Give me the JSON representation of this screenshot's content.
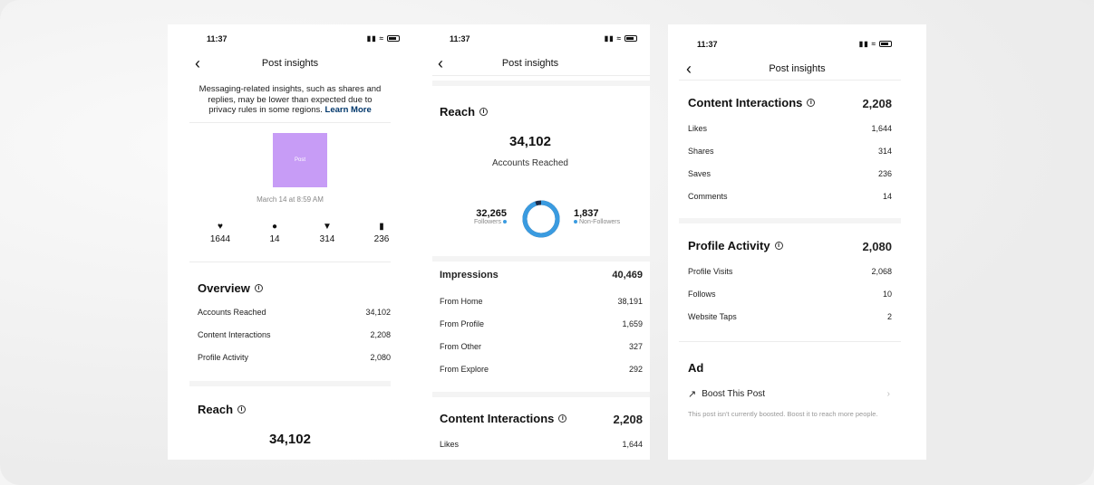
{
  "colors": {
    "accent": "#3a9be0",
    "post_thumb": "#c79cf6",
    "link": "#00376b"
  },
  "phone1": {
    "time": "11:37",
    "title": "Post insights",
    "notice": "Messaging-related insights, such as shares and replies, may be lower than expected due to privacy rules in some regions.",
    "learn_more": "Learn More",
    "thumb_label": "Post",
    "date": "March 14 at 8:59 AM",
    "stats": [
      {
        "icon": "heart-icon",
        "value": "1644"
      },
      {
        "icon": "comment-icon",
        "value": "14"
      },
      {
        "icon": "share-icon",
        "value": "314"
      },
      {
        "icon": "save-icon",
        "value": "236"
      }
    ],
    "overview_title": "Overview",
    "overview_rows": [
      {
        "label": "Accounts Reached",
        "value": "34,102"
      },
      {
        "label": "Content Interactions",
        "value": "2,208"
      },
      {
        "label": "Profile Activity",
        "value": "2,080"
      }
    ],
    "reach_title": "Reach",
    "reach_value": "34,102"
  },
  "phone2": {
    "time": "11:37",
    "title": "Post insights",
    "reach_title": "Reach",
    "reach_value": "34,102",
    "reach_sub": "Accounts Reached",
    "followers_value": "32,265",
    "followers_label": "Followers",
    "nonfollowers_value": "1,837",
    "nonfollowers_label": "Non-Followers",
    "followers_fraction": 0.946,
    "impressions_title": "Impressions",
    "impressions_value": "40,469",
    "impression_rows": [
      {
        "label": "From Home",
        "value": "38,191"
      },
      {
        "label": "From Profile",
        "value": "1,659"
      },
      {
        "label": "From Other",
        "value": "327"
      },
      {
        "label": "From Explore",
        "value": "292"
      }
    ],
    "ci_title": "Content Interactions",
    "ci_value": "2,208",
    "ci_row": {
      "label": "Likes",
      "value": "1,644"
    }
  },
  "phone3": {
    "time": "11:37",
    "title": "Post insights",
    "ci_title": "Content Interactions",
    "ci_value": "2,208",
    "ci_rows": [
      {
        "label": "Likes",
        "value": "1,644"
      },
      {
        "label": "Shares",
        "value": "314"
      },
      {
        "label": "Saves",
        "value": "236"
      },
      {
        "label": "Comments",
        "value": "14"
      }
    ],
    "pa_title": "Profile Activity",
    "pa_value": "2,080",
    "pa_rows": [
      {
        "label": "Profile Visits",
        "value": "2,068"
      },
      {
        "label": "Follows",
        "value": "10"
      },
      {
        "label": "Website Taps",
        "value": "2"
      }
    ],
    "ad_title": "Ad",
    "boost_label": "Boost This Post",
    "boost_note": "This post isn't currently boosted. Boost it to reach more people."
  }
}
